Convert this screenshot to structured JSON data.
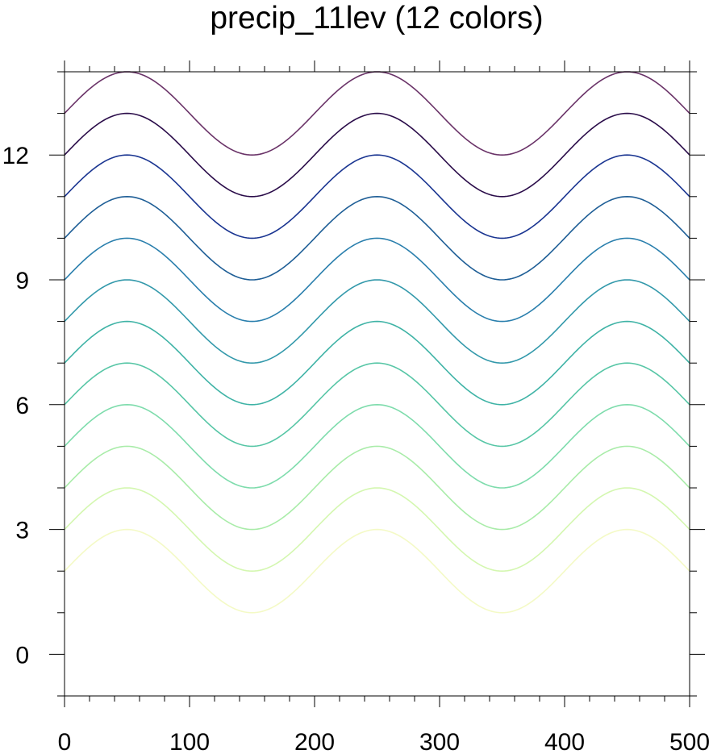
{
  "chart_data": {
    "type": "line",
    "title": "precip_11lev (12 colors)",
    "xlabel": "",
    "ylabel": "",
    "xlim": [
      0,
      500
    ],
    "ylim": [
      -1,
      14
    ],
    "x_ticks": [
      "0",
      "100",
      "200",
      "300",
      "400",
      "500"
    ],
    "y_ticks": [
      "0",
      "3",
      "6",
      "9",
      "12"
    ],
    "grid": false,
    "legend": "none",
    "curve": {
      "formula": "offset + sin(2*pi*x/200)",
      "period": 200,
      "amplitude": 1
    },
    "series": [
      {
        "offset": 2,
        "color": "#f4fac6"
      },
      {
        "offset": 3,
        "color": "#d4f7b0"
      },
      {
        "offset": 4,
        "color": "#a9eca9"
      },
      {
        "offset": 5,
        "color": "#7edcac"
      },
      {
        "offset": 6,
        "color": "#57c6a6"
      },
      {
        "offset": 7,
        "color": "#3fb3a6"
      },
      {
        "offset": 8,
        "color": "#3399ab"
      },
      {
        "offset": 9,
        "color": "#2a7fad"
      },
      {
        "offset": 10,
        "color": "#1e5e96"
      },
      {
        "offset": 11,
        "color": "#1a3591"
      },
      {
        "offset": 12,
        "color": "#2b0d4a"
      },
      {
        "offset": 13,
        "color": "#6a3368"
      }
    ]
  }
}
